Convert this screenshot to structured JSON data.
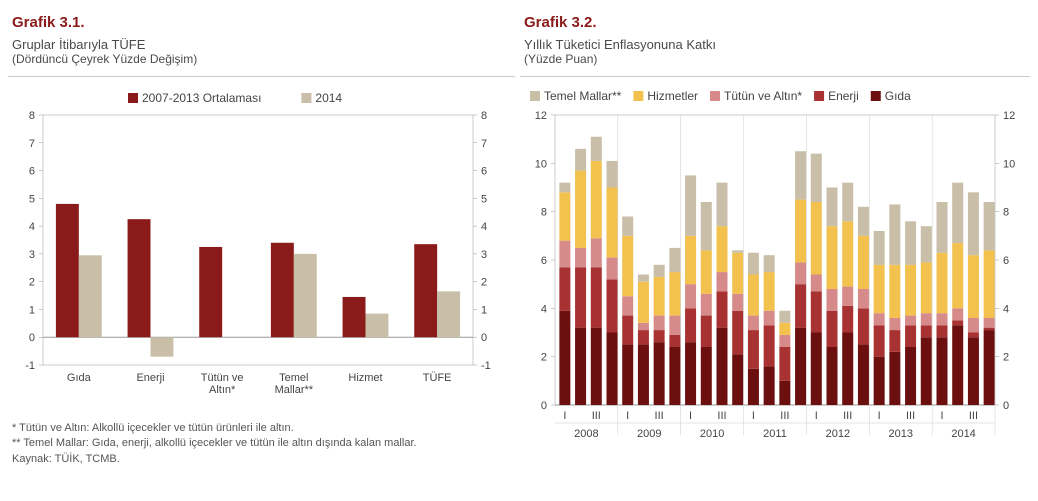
{
  "chart1": {
    "type": "bar",
    "title": "Grafik 3.1.",
    "subtitle": "Gruplar İtibarıyla TÜFE",
    "subtitle2": "(Dördüncü Çeyrek Yüzde Değişim)",
    "categories": [
      "Gıda",
      "Enerji",
      "Tütün ve\nAltın*",
      "Temel\nMallar**",
      "Hizmet",
      "TÜFE"
    ],
    "series": [
      {
        "name": "2007-2013 Ortalaması",
        "color": "#8b1a1a",
        "values": [
          4.8,
          4.25,
          3.25,
          3.4,
          1.45,
          3.35
        ]
      },
      {
        "name": "2014",
        "color": "#c9bfa8",
        "values": [
          2.95,
          -0.7,
          0,
          3.0,
          0.85,
          1.65
        ]
      }
    ],
    "ylim": [
      -1,
      8
    ],
    "ytick_step": 1,
    "background_color": "#ffffff",
    "grid_color": "#e0e0e0",
    "bar_gap": 0.2,
    "legend_position": "top",
    "font_size_axis": 11,
    "font_size_legend": 12,
    "font_size_title": 15,
    "title_color": "#8b1a1a"
  },
  "chart2": {
    "type": "stacked_bar",
    "title": "Grafik 3.2.",
    "subtitle": "Yıllık Tüketici Enflasyonuna Katkı",
    "subtitle2": "(Yüzde Puan)",
    "legend": [
      {
        "name": "Temel Mallar**",
        "color": "#c9bfa8"
      },
      {
        "name": "Hizmetler",
        "color": "#f2c14e"
      },
      {
        "name": "Tütün ve Altın*",
        "color": "#d68a8a"
      },
      {
        "name": "Enerji",
        "color": "#a83232"
      },
      {
        "name": "Gıda",
        "color": "#6b0f0f"
      }
    ],
    "years": [
      "2008",
      "2009",
      "2010",
      "2011",
      "2012",
      "2013",
      "2014"
    ],
    "quarter_labels": [
      "I",
      "",
      "III",
      ""
    ],
    "data": [
      [
        3.9,
        1.8,
        1.1,
        2.0,
        0.4
      ],
      [
        3.2,
        2.5,
        0.8,
        3.2,
        0.9
      ],
      [
        3.2,
        2.5,
        1.2,
        3.2,
        1.0
      ],
      [
        3.0,
        2.2,
        0.9,
        2.9,
        1.1
      ],
      [
        2.5,
        1.2,
        0.8,
        2.5,
        0.8
      ],
      [
        2.5,
        0.6,
        0.3,
        1.7,
        0.3
      ],
      [
        2.6,
        0.5,
        0.6,
        1.6,
        0.5
      ],
      [
        2.4,
        0.5,
        0.8,
        1.8,
        1.0
      ],
      [
        2.6,
        1.4,
        1.0,
        2.0,
        2.5
      ],
      [
        2.4,
        1.3,
        0.9,
        1.8,
        2.0
      ],
      [
        3.2,
        1.5,
        0.8,
        1.9,
        1.8
      ],
      [
        2.1,
        1.8,
        0.7,
        1.7,
        0.1
      ],
      [
        1.5,
        1.6,
        0.6,
        1.7,
        0.9
      ],
      [
        1.6,
        1.7,
        0.6,
        1.6,
        0.7
      ],
      [
        1.0,
        1.4,
        0.5,
        0.5,
        0.5
      ],
      [
        3.2,
        1.8,
        0.9,
        2.6,
        2.0
      ],
      [
        3.0,
        1.7,
        0.7,
        3.0,
        2.0
      ],
      [
        2.4,
        1.5,
        0.9,
        2.6,
        1.6
      ],
      [
        3.0,
        1.1,
        0.8,
        2.7,
        1.6
      ],
      [
        2.5,
        1.5,
        0.8,
        2.2,
        1.2
      ],
      [
        2.0,
        1.3,
        0.5,
        2.0,
        1.4
      ],
      [
        2.2,
        0.9,
        0.5,
        2.2,
        2.5
      ],
      [
        2.4,
        0.9,
        0.4,
        2.1,
        1.8
      ],
      [
        2.8,
        0.5,
        0.5,
        2.1,
        1.5
      ],
      [
        2.8,
        0.5,
        0.5,
        2.5,
        2.1
      ],
      [
        3.3,
        0.2,
        0.5,
        2.7,
        2.5
      ],
      [
        2.8,
        0.2,
        0.6,
        2.6,
        2.6
      ],
      [
        3.1,
        0.1,
        0.4,
        2.8,
        2.0
      ]
    ],
    "ylim": [
      0,
      12
    ],
    "ytick_step": 2,
    "background_color": "#ffffff",
    "grid_color": "#e0e0e0",
    "font_size_axis": 11,
    "font_size_legend": 12,
    "font_size_title": 15,
    "title_color": "#8b1a1a"
  },
  "footnotes": {
    "note1": "* Tütün ve Altın: Alkollü içecekler ve tütün ürünleri ile altın.",
    "note2": "** Temel Mallar: Gıda, enerji, alkollü içecekler ve tütün ile altın dışında kalan mallar.",
    "source": "Kaynak: TÜİK, TCMB."
  }
}
